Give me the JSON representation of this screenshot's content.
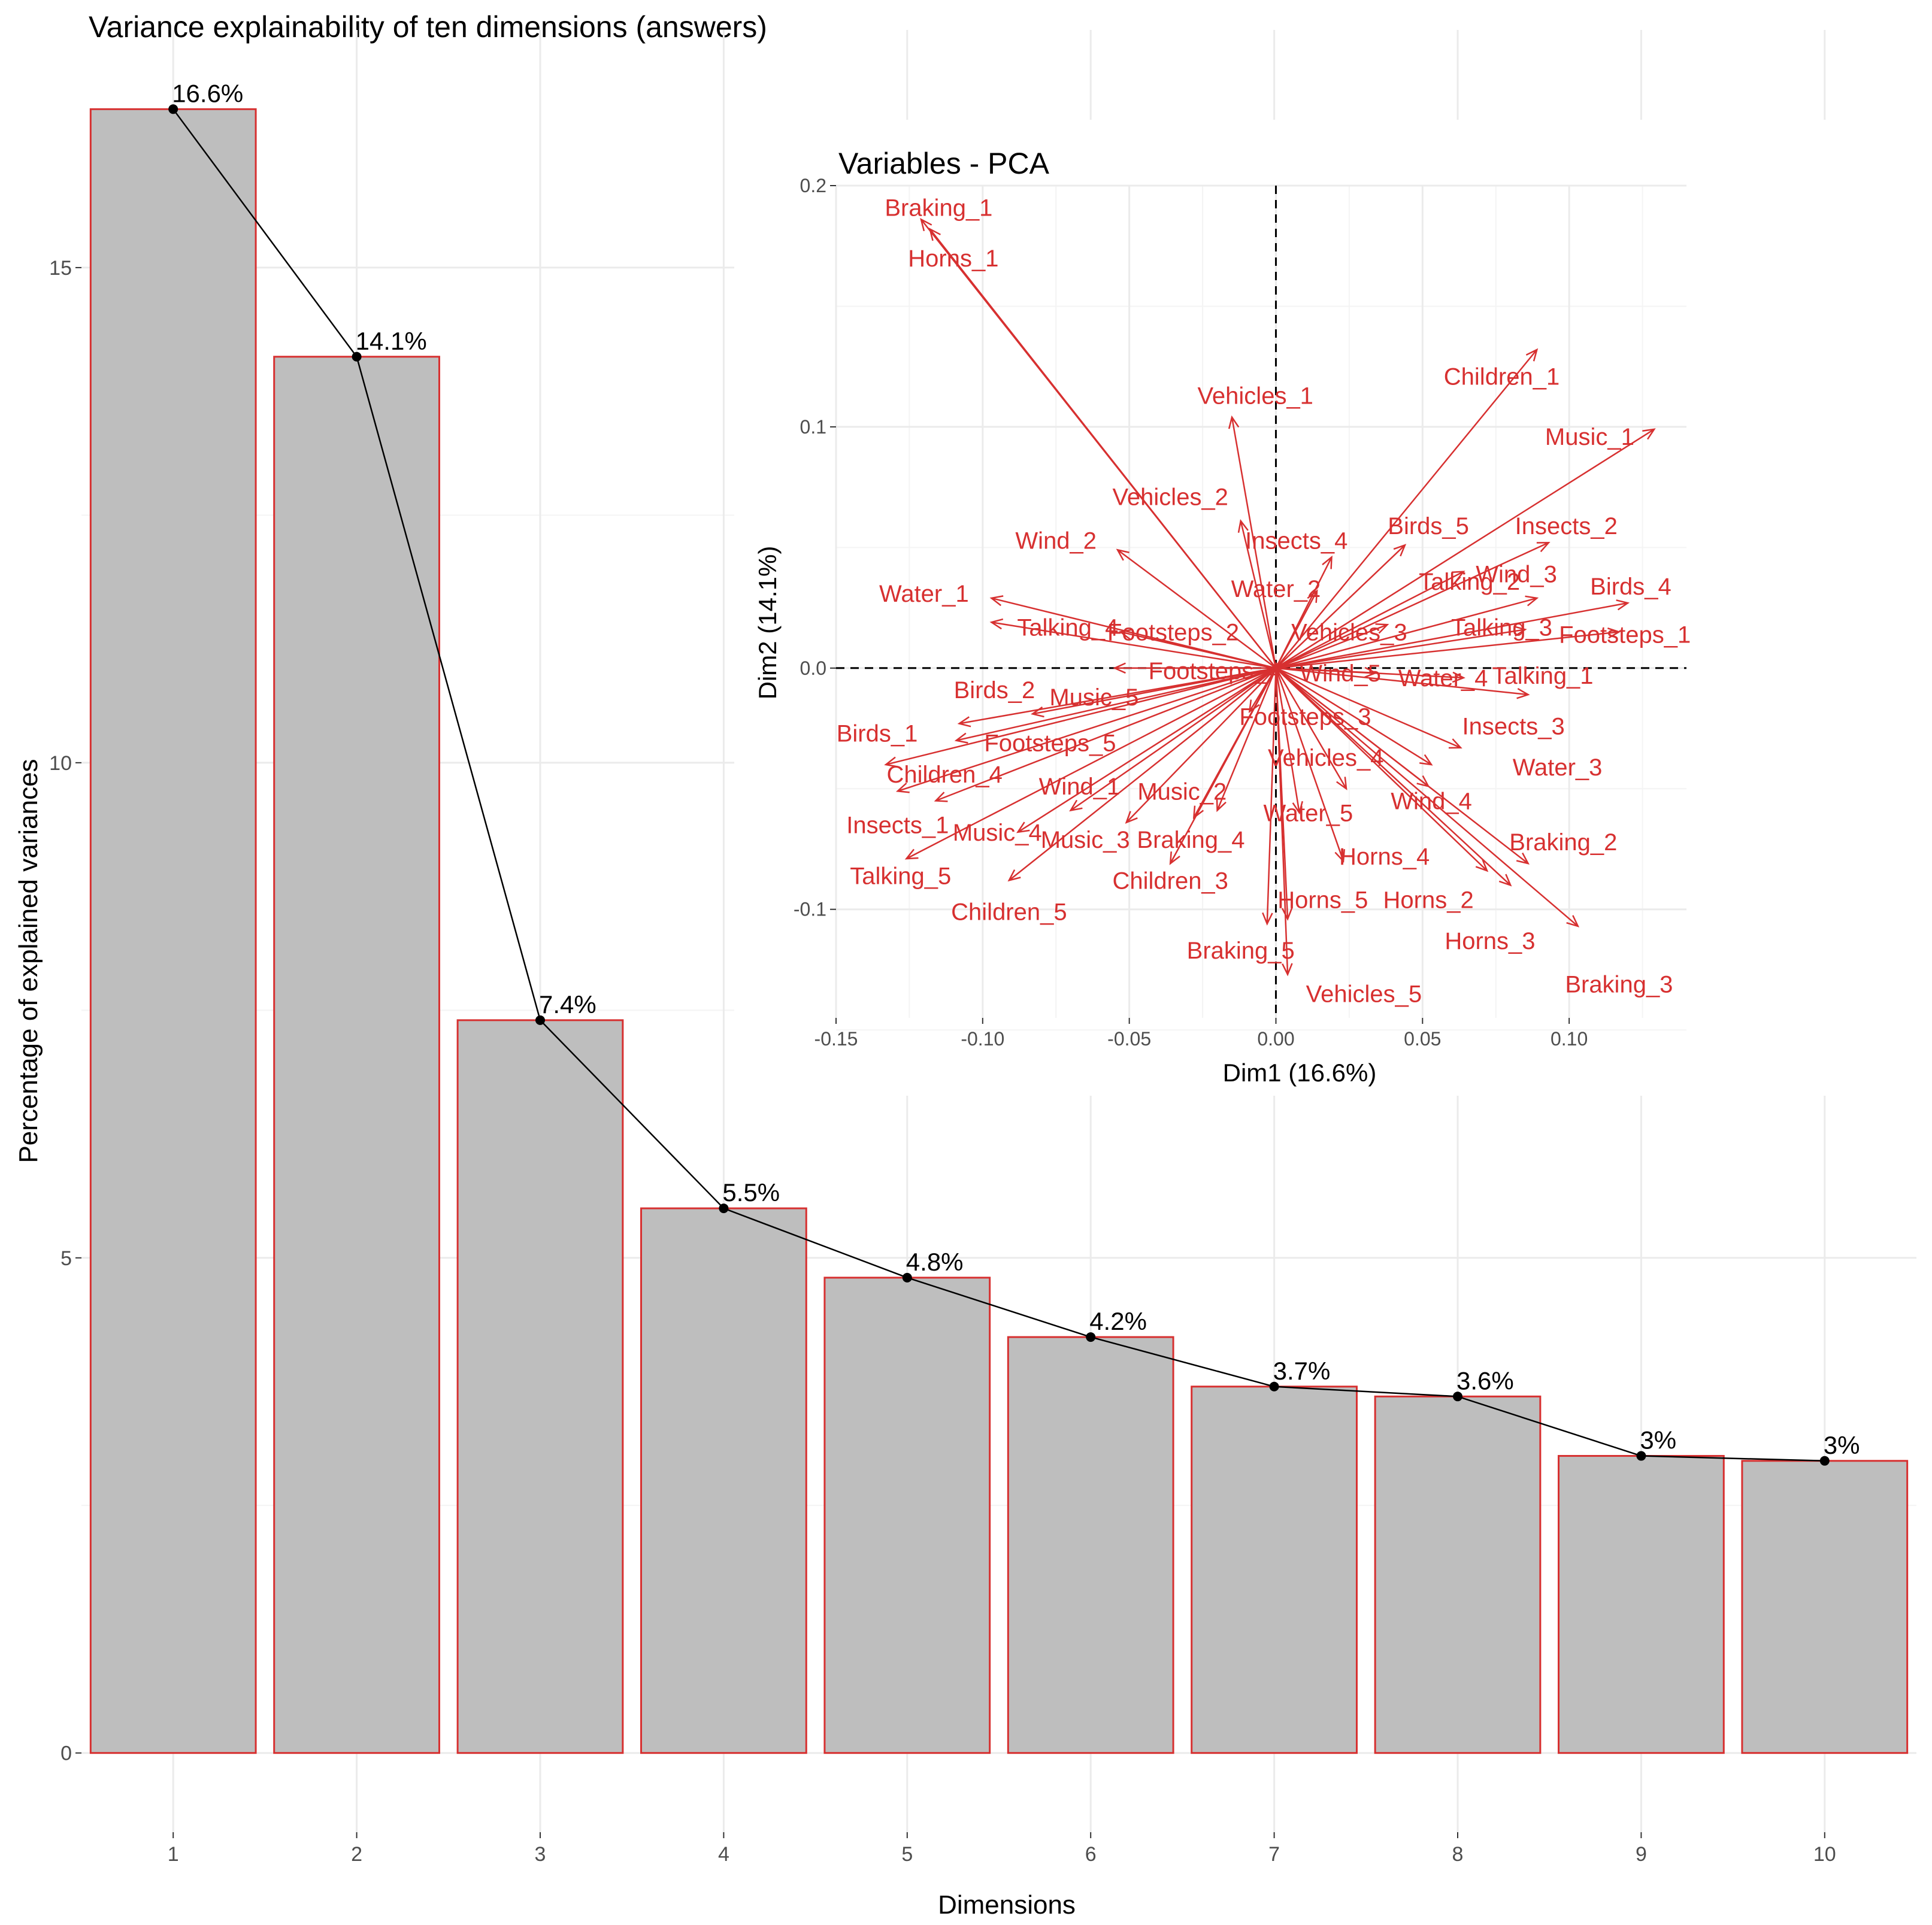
{
  "chart_data": [
    {
      "type": "bar",
      "title": "Variance explainability of ten dimensions (answers)",
      "xlabel": "Dimensions",
      "ylabel": "Percentage of explained variances",
      "categories": [
        "1",
        "2",
        "3",
        "4",
        "5",
        "6",
        "7",
        "8",
        "9",
        "10"
      ],
      "values": [
        16.6,
        14.1,
        7.4,
        5.5,
        4.8,
        4.2,
        3.7,
        3.6,
        3.0,
        2.95
      ],
      "data_labels": [
        "16.6%",
        "14.1%",
        "7.4%",
        "5.5%",
        "4.8%",
        "4.2%",
        "3.7%",
        "3.6%",
        "3%",
        "3%"
      ],
      "yticks": [
        0,
        5,
        10,
        15
      ],
      "ytick_labels": [
        "0",
        "5",
        "10",
        "15"
      ],
      "ylim": [
        -0.8,
        17.4
      ],
      "line_overlay": true,
      "grid": true,
      "bar_fill": "#bebebe",
      "bar_outline": "#d73030"
    },
    {
      "type": "scatter",
      "subtype": "biplot-arrows",
      "title": "Variables - PCA",
      "xlabel": "Dim1 (16.6%)",
      "ylabel": "Dim2 (14.1%)",
      "xlim": [
        -0.15,
        0.14
      ],
      "ylim": [
        -0.145,
        0.2
      ],
      "xticks": [
        -0.15,
        -0.1,
        -0.05,
        0.0,
        0.05,
        0.1
      ],
      "xtick_labels": [
        "-0.15",
        "-0.10",
        "-0.05",
        "0.00",
        "0.05",
        "0.10"
      ],
      "yticks": [
        -0.1,
        0.0,
        0.1,
        0.2
      ],
      "ytick_labels": [
        "-0.1",
        "0.0",
        "0.1",
        "0.2"
      ],
      "grid": true,
      "arrow_color": "#d73030",
      "variables": [
        {
          "label": "Braking_1",
          "x": -0.121,
          "y": 0.186,
          "lx": -0.115,
          "ly": 0.191
        },
        {
          "label": "Horns_1",
          "x": -0.118,
          "y": 0.182,
          "lx": -0.11,
          "ly": 0.17
        },
        {
          "label": "Children_1",
          "x": 0.089,
          "y": 0.132,
          "lx": 0.077,
          "ly": 0.121
        },
        {
          "label": "Vehicles_1",
          "x": -0.015,
          "y": 0.104,
          "lx": -0.007,
          "ly": 0.113
        },
        {
          "label": "Music_1",
          "x": 0.129,
          "y": 0.099,
          "lx": 0.107,
          "ly": 0.096
        },
        {
          "label": "Vehicles_2",
          "x": -0.012,
          "y": 0.061,
          "lx": -0.036,
          "ly": 0.071
        },
        {
          "label": "Wind_2",
          "x": -0.054,
          "y": 0.049,
          "lx": -0.075,
          "ly": 0.053
        },
        {
          "label": "Insects_4",
          "x": 0.019,
          "y": 0.046,
          "lx": 0.007,
          "ly": 0.053
        },
        {
          "label": "Birds_5",
          "x": 0.044,
          "y": 0.051,
          "lx": 0.052,
          "ly": 0.059
        },
        {
          "label": "Insects_2",
          "x": 0.093,
          "y": 0.052,
          "lx": 0.099,
          "ly": 0.059
        },
        {
          "label": "Water_2",
          "x": 0.014,
          "y": 0.032,
          "lx": 0.0,
          "ly": 0.033
        },
        {
          "label": "Talking_2",
          "x": 0.064,
          "y": 0.04,
          "lx": 0.066,
          "ly": 0.036
        },
        {
          "label": "Wind_3",
          "x": 0.089,
          "y": 0.029,
          "lx": 0.082,
          "ly": 0.039
        },
        {
          "label": "Birds_4",
          "x": 0.12,
          "y": 0.027,
          "lx": 0.121,
          "ly": 0.034
        },
        {
          "label": "Water_1",
          "x": -0.097,
          "y": 0.029,
          "lx": -0.12,
          "ly": 0.031
        },
        {
          "label": "Talking_4",
          "x": -0.097,
          "y": 0.019,
          "lx": -0.071,
          "ly": 0.017
        },
        {
          "label": "Footsteps_2",
          "x": -0.053,
          "y": 0.015,
          "lx": -0.035,
          "ly": 0.015
        },
        {
          "label": "Vehicles_3",
          "x": 0.038,
          "y": 0.018,
          "lx": 0.025,
          "ly": 0.015
        },
        {
          "label": "Talking_3",
          "x": 0.085,
          "y": 0.016,
          "lx": 0.077,
          "ly": 0.017
        },
        {
          "label": "Footsteps_1",
          "x": 0.117,
          "y": 0.015,
          "lx": 0.119,
          "ly": 0.014
        },
        {
          "label": "Footsteps_4",
          "x": -0.055,
          "y": 0.0,
          "lx": -0.021,
          "ly": -0.001
        },
        {
          "label": "Wind_5",
          "x": 0.034,
          "y": -0.002,
          "lx": 0.022,
          "ly": -0.002
        },
        {
          "label": "Water_4",
          "x": 0.064,
          "y": -0.004,
          "lx": 0.057,
          "ly": -0.004
        },
        {
          "label": "Talking_1",
          "x": 0.086,
          "y": -0.011,
          "lx": 0.091,
          "ly": -0.003
        },
        {
          "label": "Birds_2",
          "x": -0.108,
          "y": -0.023,
          "lx": -0.096,
          "ly": -0.009
        },
        {
          "label": "Music_5",
          "x": -0.083,
          "y": -0.019,
          "lx": -0.062,
          "ly": -0.012
        },
        {
          "label": "Footsteps_3",
          "x": -0.009,
          "y": -0.018,
          "lx": 0.01,
          "ly": -0.02
        },
        {
          "label": "Birds_1",
          "x": -0.133,
          "y": -0.04,
          "lx": -0.136,
          "ly": -0.027
        },
        {
          "label": "Footsteps_5",
          "x": -0.109,
          "y": -0.03,
          "lx": -0.077,
          "ly": -0.031
        },
        {
          "label": "Insects_3",
          "x": 0.063,
          "y": -0.033,
          "lx": 0.081,
          "ly": -0.024
        },
        {
          "label": "Water_3",
          "x": 0.053,
          "y": -0.04,
          "lx": 0.096,
          "ly": -0.041
        },
        {
          "label": "Children_4",
          "x": -0.129,
          "y": -0.051,
          "lx": -0.113,
          "ly": -0.044
        },
        {
          "label": "Vehicles_4",
          "x": 0.024,
          "y": -0.05,
          "lx": 0.017,
          "ly": -0.037
        },
        {
          "label": "Wind_1",
          "x": -0.07,
          "y": -0.059,
          "lx": -0.067,
          "ly": -0.049
        },
        {
          "label": "Music_2",
          "x": -0.02,
          "y": -0.059,
          "lx": -0.032,
          "ly": -0.051
        },
        {
          "label": "Wind_4",
          "x": 0.052,
          "y": -0.049,
          "lx": 0.053,
          "ly": -0.055
        },
        {
          "label": "Water_5",
          "x": 0.008,
          "y": -0.06,
          "lx": 0.011,
          "ly": -0.06
        },
        {
          "label": "Insects_1",
          "x": -0.116,
          "y": -0.055,
          "lx": -0.129,
          "ly": -0.065
        },
        {
          "label": "Music_4",
          "x": -0.088,
          "y": -0.068,
          "lx": -0.095,
          "ly": -0.068
        },
        {
          "label": "Music_3",
          "x": -0.051,
          "y": -0.064,
          "lx": -0.065,
          "ly": -0.071
        },
        {
          "label": "Braking_4",
          "x": -0.028,
          "y": -0.062,
          "lx": -0.029,
          "ly": -0.071
        },
        {
          "label": "Braking_2",
          "x": 0.086,
          "y": -0.081,
          "lx": 0.098,
          "ly": -0.072
        },
        {
          "label": "Horns_4",
          "x": 0.023,
          "y": -0.08,
          "lx": 0.037,
          "ly": -0.078
        },
        {
          "label": "Talking_5",
          "x": -0.126,
          "y": -0.079,
          "lx": -0.128,
          "ly": -0.086
        },
        {
          "label": "Children_5",
          "x": -0.091,
          "y": -0.088,
          "lx": -0.091,
          "ly": -0.101
        },
        {
          "label": "Children_3",
          "x": -0.036,
          "y": -0.081,
          "lx": -0.036,
          "ly": -0.088
        },
        {
          "label": "Horns_5",
          "x": 0.004,
          "y": -0.104,
          "lx": 0.016,
          "ly": -0.096
        },
        {
          "label": "Horns_2",
          "x": 0.08,
          "y": -0.09,
          "lx": 0.052,
          "ly": -0.096
        },
        {
          "label": "Horns_3",
          "x": 0.072,
          "y": -0.084,
          "lx": 0.073,
          "ly": -0.113
        },
        {
          "label": "Braking_5",
          "x": -0.003,
          "y": -0.106,
          "lx": -0.012,
          "ly": -0.117
        },
        {
          "label": "Braking_3",
          "x": 0.103,
          "y": -0.107,
          "lx": 0.117,
          "ly": -0.131
        },
        {
          "label": "Vehicles_5",
          "x": 0.004,
          "y": -0.127,
          "lx": 0.03,
          "ly": -0.135
        }
      ]
    }
  ]
}
